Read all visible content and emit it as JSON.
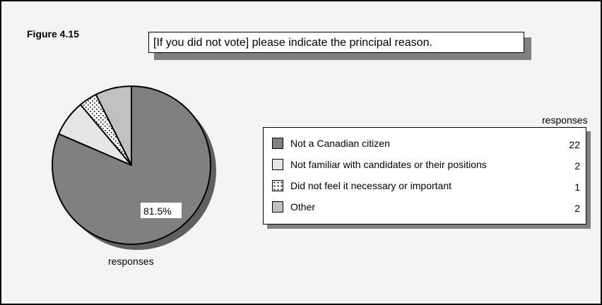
{
  "figure_label": "Figure 4.15",
  "question": "[If you did not vote] please indicate the principal reason.",
  "pie_caption": "responses",
  "legend_header": "responses",
  "colors": {
    "not_citizen": "#808080",
    "not_familiar": "#e6e6e6",
    "not_necessary": "#ffffff",
    "other": "#c0c0c0",
    "outline": "#000000",
    "shadow": "#606060"
  },
  "chart_data": {
    "type": "pie",
    "title": "[If you did not vote] please indicate the principal reason.",
    "categories": [
      "Not a Canadian citizen",
      "Not familiar with candidates or their positions",
      "Did not feel it necessary or important",
      "Other"
    ],
    "values": [
      22,
      2,
      1,
      2
    ],
    "data_labels": [
      "81.5%"
    ],
    "legend": "right",
    "patterns": [
      "solid-dark-gray",
      "solid-light-gray",
      "dotted",
      "solid-gray"
    ]
  }
}
